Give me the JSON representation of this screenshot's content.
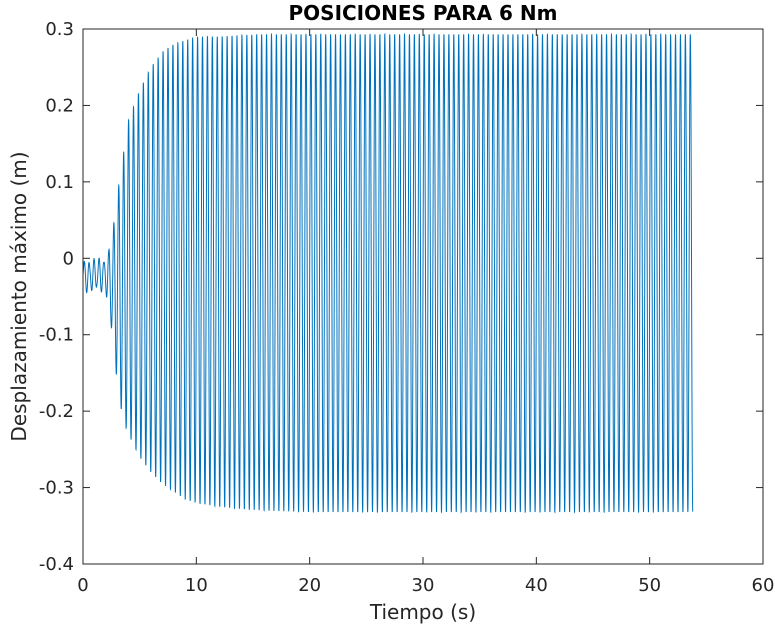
{
  "chart_data": {
    "type": "line",
    "title": "POSICIONES PARA 6 Nm",
    "xlabel": "Tiempo (s)",
    "ylabel": "Desplazamiento máximo (m)",
    "xlim": [
      0,
      60
    ],
    "ylim": [
      -0.4,
      0.3
    ],
    "xticks": [
      0,
      10,
      20,
      30,
      40,
      50,
      60
    ],
    "xtick_labels": [
      "0",
      "10",
      "20",
      "30",
      "40",
      "50",
      "60"
    ],
    "yticks": [
      -0.4,
      -0.3,
      -0.2,
      -0.1,
      0,
      0.1,
      0.2,
      0.3
    ],
    "ytick_labels": [
      "-0.4",
      "-0.3",
      "-0.2",
      "-0.1",
      "0",
      "0.1",
      "0.2",
      "0.3"
    ],
    "grid": false,
    "series": [
      {
        "color": "#0072bd",
        "oscillation_frequency_hz": 2.3,
        "x_end": 53.8,
        "envelope": {
          "x": [
            0,
            1,
            2,
            2.5,
            3,
            3.5,
            4,
            5,
            6,
            7,
            8,
            9,
            10,
            12,
            14,
            16,
            20,
            25,
            30,
            40,
            50,
            53.8
          ],
          "upper": [
            0,
            0,
            0.005,
            0.02,
            0.08,
            0.13,
            0.18,
            0.22,
            0.25,
            0.27,
            0.28,
            0.285,
            0.29,
            0.29,
            0.292,
            0.293,
            0.293,
            0.293,
            0.293,
            0.293,
            0.293,
            0.293
          ],
          "lower": [
            -0.045,
            -0.045,
            -0.045,
            -0.09,
            -0.16,
            -0.21,
            -0.23,
            -0.26,
            -0.28,
            -0.295,
            -0.305,
            -0.315,
            -0.32,
            -0.325,
            -0.328,
            -0.33,
            -0.332,
            -0.332,
            -0.332,
            -0.332,
            -0.332,
            -0.332
          ]
        }
      }
    ]
  }
}
